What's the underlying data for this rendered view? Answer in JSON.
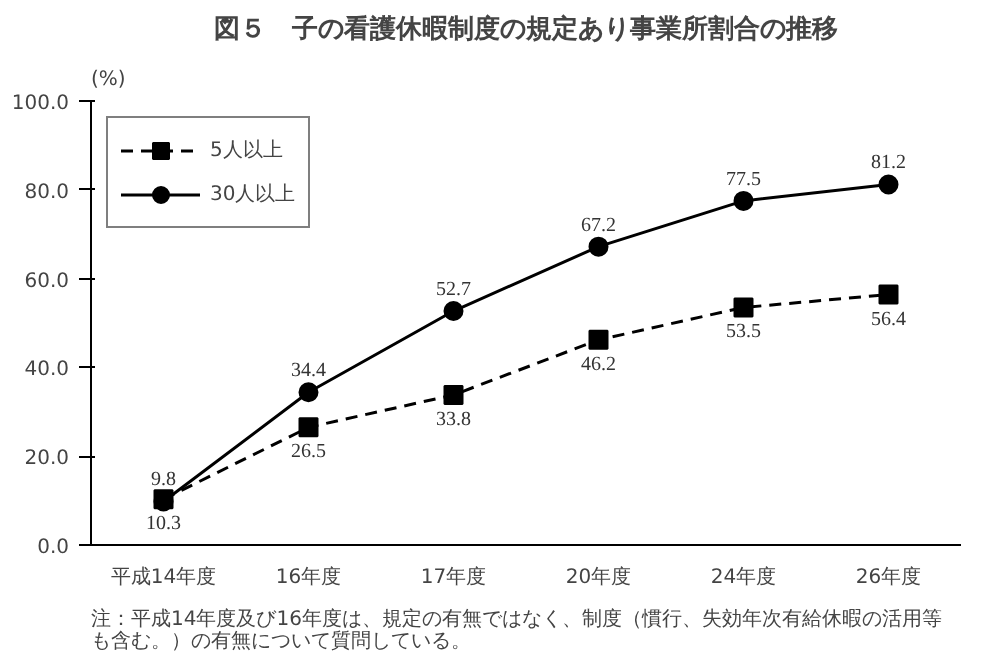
{
  "chart_data": {
    "type": "line",
    "title": "図５　子の看護休暇制度の規定あり事業所割合の推移",
    "ylabel": "(%)",
    "categories": [
      "平成14年度",
      "16年度",
      "17年度",
      "20年度",
      "24年度",
      "26年度"
    ],
    "series": [
      {
        "name": "5人以上",
        "color": "#000000",
        "marker": "square",
        "line_style": "dashed",
        "values": [
          10.3,
          26.5,
          33.8,
          46.2,
          53.5,
          56.4
        ]
      },
      {
        "name": "30人以上",
        "color": "#000000",
        "marker": "circle",
        "line_style": "solid",
        "values": [
          9.8,
          34.4,
          52.7,
          67.2,
          77.5,
          81.2
        ]
      }
    ],
    "ylim": [
      0,
      100
    ],
    "yticks": [
      {
        "value": 0,
        "label": "0.0"
      },
      {
        "value": 20,
        "label": "20.0"
      },
      {
        "value": 40,
        "label": "40.0"
      },
      {
        "value": 60,
        "label": "60.0"
      },
      {
        "value": 80,
        "label": "80.0"
      },
      {
        "value": 100,
        "label": "100.0"
      }
    ],
    "data_labels": true,
    "grid": false,
    "legend": "top left",
    "annotations": [
      "注：平成14年度及び16年度は、規定の有無ではなく、制度（慣行、失効年次有給休暇の活用等も含む。）の有無について質問している。"
    ]
  }
}
